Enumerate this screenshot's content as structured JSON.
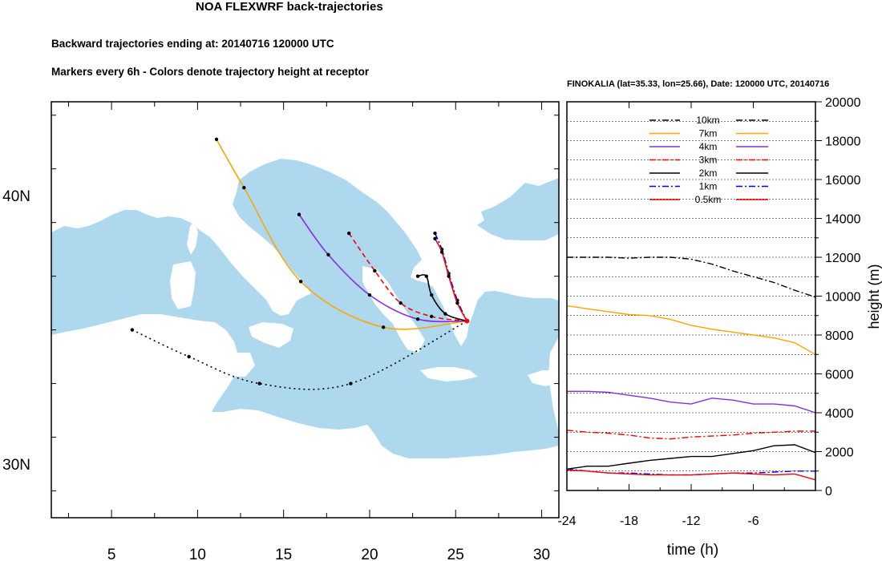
{
  "header": {
    "title": "NOA FLEXWRF back-trajectories",
    "subtitle1": "Backward trajectories ending at: 20140716  120000 UTC",
    "subtitle2": "Markers every 6h - Colors denote trajectory height at receptor"
  },
  "chart_data": [
    {
      "type": "map",
      "x_ticks": [
        "5",
        "10",
        "15",
        "20",
        "25",
        "30"
      ],
      "y_ticks": [
        "30N",
        "40N"
      ],
      "xlim": [
        1.5,
        31
      ],
      "ylim": [
        28,
        43.5
      ],
      "colors": {
        "sea": "#add8ee",
        "land": "#ffffff"
      },
      "receptor": {
        "lon": 25.66,
        "lat": 35.33
      },
      "trajectories": [
        {
          "height": "10km",
          "color": "#000000",
          "dash": "dot",
          "points": [
            [
              6.2,
              35.0
            ],
            [
              9.5,
              34.0
            ],
            [
              13.6,
              33.0
            ],
            [
              18.9,
              33.0
            ],
            [
              25.66,
              35.33
            ]
          ]
        },
        {
          "height": "7km",
          "color": "#ffa500",
          "dash": "solid",
          "points": [
            [
              11.1,
              42.1
            ],
            [
              12.7,
              40.3
            ],
            [
              16.0,
              36.8
            ],
            [
              20.8,
              35.1
            ],
            [
              25.66,
              35.33
            ]
          ]
        },
        {
          "height": "4km",
          "color": "#8a2be2",
          "dash": "solid",
          "points": [
            [
              15.9,
              39.3
            ],
            [
              17.6,
              37.8
            ],
            [
              20.0,
              36.3
            ],
            [
              22.8,
              35.4
            ],
            [
              25.66,
              35.33
            ]
          ]
        },
        {
          "height": "3km",
          "color": "#ff0000",
          "dash": "dash",
          "points": [
            [
              18.8,
              38.6
            ],
            [
              20.3,
              37.2
            ],
            [
              21.8,
              36.0
            ],
            [
              23.6,
              35.5
            ],
            [
              25.66,
              35.33
            ]
          ]
        },
        {
          "height": "2km",
          "color": "#000000",
          "dash": "solid",
          "points": [
            [
              22.8,
              37.0
            ],
            [
              23.3,
              37.0
            ],
            [
              23.6,
              36.3
            ],
            [
              24.4,
              35.6
            ],
            [
              25.66,
              35.33
            ]
          ]
        },
        {
          "height": "1km",
          "color": "#0000ff",
          "dash": "dashdot",
          "points": [
            [
              23.8,
              38.6
            ],
            [
              24.2,
              38.0
            ],
            [
              24.6,
              37.1
            ],
            [
              25.1,
              36.1
            ],
            [
              25.66,
              35.33
            ]
          ]
        },
        {
          "height": "0.5km",
          "color": "#ff0000",
          "dash": "solid",
          "points": [
            [
              23.8,
              38.4
            ],
            [
              24.2,
              37.9
            ],
            [
              24.6,
              37.0
            ],
            [
              25.1,
              36.0
            ],
            [
              25.66,
              35.33
            ]
          ]
        }
      ]
    },
    {
      "type": "line",
      "title": "FINOKALIA (lat=35.33,  lon=25.66), Date: 120000 UTC, 20140716",
      "xlabel": "time (h)",
      "ylabel": "height  (m)",
      "x_ticks": [
        "-24",
        "-18",
        "-12",
        "-6"
      ],
      "x_tick_values": [
        -24,
        -18,
        -12,
        -6
      ],
      "y_ticks": [
        "0",
        "2000",
        "4000",
        "6000",
        "8000",
        "10000",
        "12000",
        "14000",
        "16000",
        "18000",
        "20000"
      ],
      "xlim": [
        -24,
        0
      ],
      "ylim": [
        0,
        20000
      ],
      "grid": true,
      "legend": "top-center",
      "x": [
        -24,
        -22,
        -20,
        -18,
        -16,
        -14,
        -12,
        -10,
        -8,
        -6,
        -4,
        -2,
        0
      ],
      "series": [
        {
          "name": "10km",
          "color": "#000000",
          "dash": "dashdot",
          "values": [
            12000,
            12000,
            12000,
            11950,
            12000,
            12000,
            11900,
            11650,
            11300,
            11000,
            10700,
            10300,
            9950
          ]
        },
        {
          "name": "7km",
          "color": "#ffa500",
          "dash": "solid",
          "values": [
            9500,
            9350,
            9200,
            9050,
            9000,
            8800,
            8500,
            8300,
            8150,
            8000,
            7850,
            7600,
            7000
          ]
        },
        {
          "name": "4km",
          "color": "#8a2be2",
          "dash": "solid",
          "values": [
            5100,
            5100,
            5050,
            4900,
            4750,
            4550,
            4450,
            4750,
            4650,
            4450,
            4450,
            4350,
            4000
          ]
        },
        {
          "name": "3km",
          "color": "#ff0000",
          "dash": "dashdot",
          "values": [
            3100,
            3000,
            2950,
            2850,
            2700,
            2650,
            2750,
            2800,
            2850,
            2950,
            3000,
            3050,
            3050
          ]
        },
        {
          "name": "2km",
          "color": "#000000",
          "dash": "solid",
          "values": [
            1100,
            1250,
            1250,
            1400,
            1550,
            1650,
            1750,
            1750,
            1900,
            2050,
            2300,
            2350,
            1950
          ]
        },
        {
          "name": "1km",
          "color": "#0000ff",
          "dash": "dashdot",
          "values": [
            1100,
            1000,
            900,
            900,
            850,
            800,
            800,
            850,
            900,
            900,
            950,
            1000,
            1000
          ]
        },
        {
          "name": "0.5km",
          "color": "#ff0000",
          "dash": "solid",
          "values": [
            1050,
            1000,
            900,
            850,
            800,
            800,
            800,
            850,
            900,
            850,
            800,
            850,
            550
          ]
        }
      ]
    }
  ]
}
